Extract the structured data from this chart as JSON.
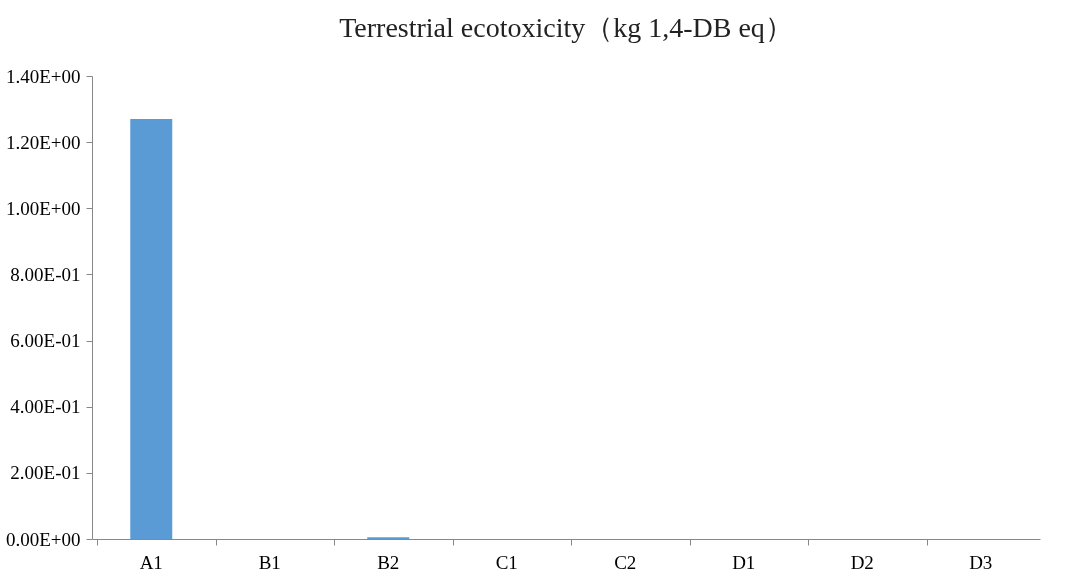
{
  "chart_data": {
    "type": "bar",
    "title": "Terrestrial ecotoxicity（kg 1,4-DB eq）",
    "categories": [
      "A1",
      "B1",
      "B2",
      "C1",
      "C2",
      "D1",
      "D2",
      "D3"
    ],
    "values": [
      1.27,
      0,
      0.005,
      0,
      0,
      0,
      0,
      0
    ],
    "color": "#5b9bd5",
    "ylim": [
      0,
      1.4
    ],
    "yticks": [
      {
        "value": 0,
        "label": "0.00E+00"
      },
      {
        "value": 0.2,
        "label": "2.00E-01"
      },
      {
        "value": 0.4,
        "label": "4.00E-01"
      },
      {
        "value": 0.6,
        "label": "6.00E-01"
      },
      {
        "value": 0.8,
        "label": "8.00E-01"
      },
      {
        "value": 1.0,
        "label": "1.00E+00"
      },
      {
        "value": 1.2,
        "label": "1.20E+00"
      },
      {
        "value": 1.4,
        "label": "1.40E+00"
      }
    ],
    "grid": false
  }
}
